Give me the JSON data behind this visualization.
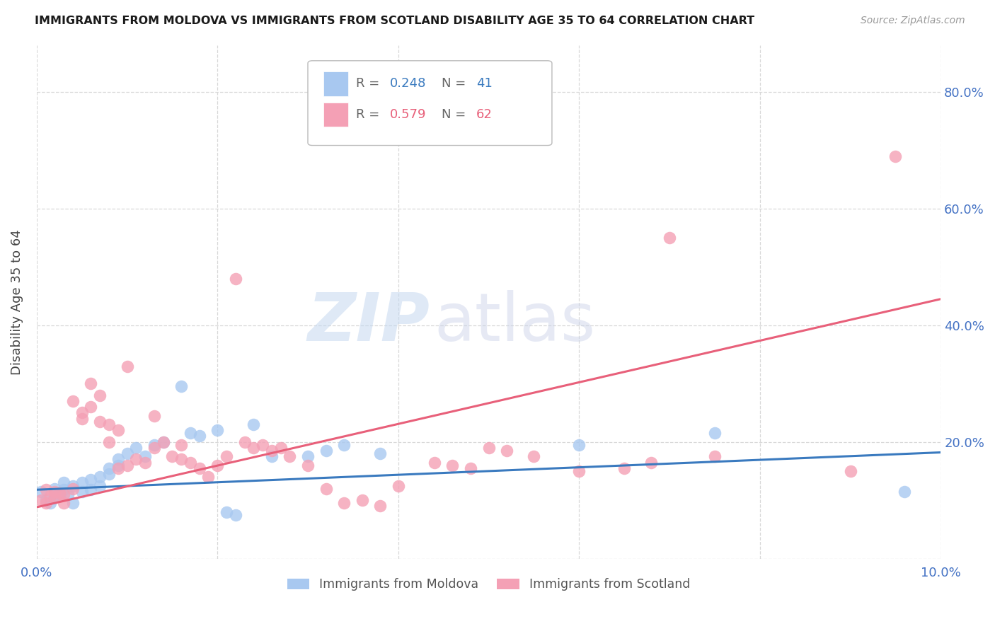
{
  "title": "IMMIGRANTS FROM MOLDOVA VS IMMIGRANTS FROM SCOTLAND DISABILITY AGE 35 TO 64 CORRELATION CHART",
  "source": "Source: ZipAtlas.com",
  "ylabel": "Disability Age 35 to 64",
  "xlim": [
    0.0,
    0.1
  ],
  "ylim": [
    0.0,
    0.88
  ],
  "xticks": [
    0.0,
    0.02,
    0.04,
    0.06,
    0.08,
    0.1
  ],
  "xticklabels": [
    "0.0%",
    "",
    "",
    "",
    "",
    "10.0%"
  ],
  "yticks": [
    0.0,
    0.2,
    0.4,
    0.6,
    0.8
  ],
  "yticklabels": [
    "",
    "20.0%",
    "40.0%",
    "60.0%",
    "80.0%"
  ],
  "moldova_color": "#a8c8f0",
  "scotland_color": "#f4a0b5",
  "moldova_line_color": "#3a7abf",
  "scotland_line_color": "#e8607a",
  "legend_moldova_R": "0.248",
  "legend_moldova_N": "41",
  "legend_scotland_R": "0.579",
  "legend_scotland_N": "62",
  "watermark_zip": "ZIP",
  "watermark_atlas": "atlas",
  "background_color": "#ffffff",
  "grid_color": "#d8d8d8",
  "tick_label_color": "#4472c4",
  "moldova_scatter_x": [
    0.0005,
    0.001,
    0.0015,
    0.002,
    0.002,
    0.0025,
    0.003,
    0.003,
    0.0035,
    0.004,
    0.004,
    0.005,
    0.005,
    0.006,
    0.006,
    0.007,
    0.007,
    0.008,
    0.008,
    0.009,
    0.009,
    0.01,
    0.011,
    0.012,
    0.013,
    0.014,
    0.016,
    0.017,
    0.018,
    0.02,
    0.021,
    0.022,
    0.024,
    0.026,
    0.03,
    0.032,
    0.034,
    0.038,
    0.06,
    0.075,
    0.096
  ],
  "moldova_scatter_y": [
    0.115,
    0.1,
    0.095,
    0.12,
    0.105,
    0.108,
    0.118,
    0.13,
    0.11,
    0.125,
    0.095,
    0.115,
    0.13,
    0.118,
    0.135,
    0.14,
    0.125,
    0.155,
    0.145,
    0.16,
    0.17,
    0.18,
    0.19,
    0.175,
    0.195,
    0.2,
    0.295,
    0.215,
    0.21,
    0.22,
    0.08,
    0.075,
    0.23,
    0.175,
    0.175,
    0.185,
    0.195,
    0.18,
    0.195,
    0.215,
    0.115
  ],
  "scotland_scatter_x": [
    0.0005,
    0.001,
    0.001,
    0.0015,
    0.002,
    0.002,
    0.0025,
    0.003,
    0.003,
    0.004,
    0.004,
    0.005,
    0.005,
    0.006,
    0.006,
    0.007,
    0.007,
    0.008,
    0.008,
    0.009,
    0.009,
    0.01,
    0.01,
    0.011,
    0.012,
    0.013,
    0.013,
    0.014,
    0.015,
    0.016,
    0.016,
    0.017,
    0.018,
    0.019,
    0.02,
    0.021,
    0.022,
    0.023,
    0.024,
    0.025,
    0.026,
    0.027,
    0.028,
    0.03,
    0.032,
    0.034,
    0.036,
    0.038,
    0.04,
    0.044,
    0.046,
    0.048,
    0.05,
    0.052,
    0.055,
    0.06,
    0.065,
    0.068,
    0.07,
    0.075,
    0.09,
    0.095
  ],
  "scotland_scatter_y": [
    0.1,
    0.095,
    0.118,
    0.108,
    0.115,
    0.105,
    0.112,
    0.11,
    0.095,
    0.12,
    0.27,
    0.25,
    0.24,
    0.26,
    0.3,
    0.28,
    0.235,
    0.2,
    0.23,
    0.22,
    0.155,
    0.33,
    0.16,
    0.17,
    0.165,
    0.19,
    0.245,
    0.2,
    0.175,
    0.195,
    0.17,
    0.165,
    0.155,
    0.14,
    0.16,
    0.175,
    0.48,
    0.2,
    0.19,
    0.195,
    0.185,
    0.19,
    0.175,
    0.16,
    0.12,
    0.095,
    0.1,
    0.09,
    0.125,
    0.165,
    0.16,
    0.155,
    0.19,
    0.185,
    0.175,
    0.15,
    0.155,
    0.165,
    0.55,
    0.175,
    0.15,
    0.69
  ],
  "moldova_line_x": [
    0.0,
    0.1
  ],
  "moldova_line_y": [
    0.118,
    0.182
  ],
  "scotland_line_x": [
    0.0,
    0.1
  ],
  "scotland_line_y": [
    0.088,
    0.445
  ]
}
